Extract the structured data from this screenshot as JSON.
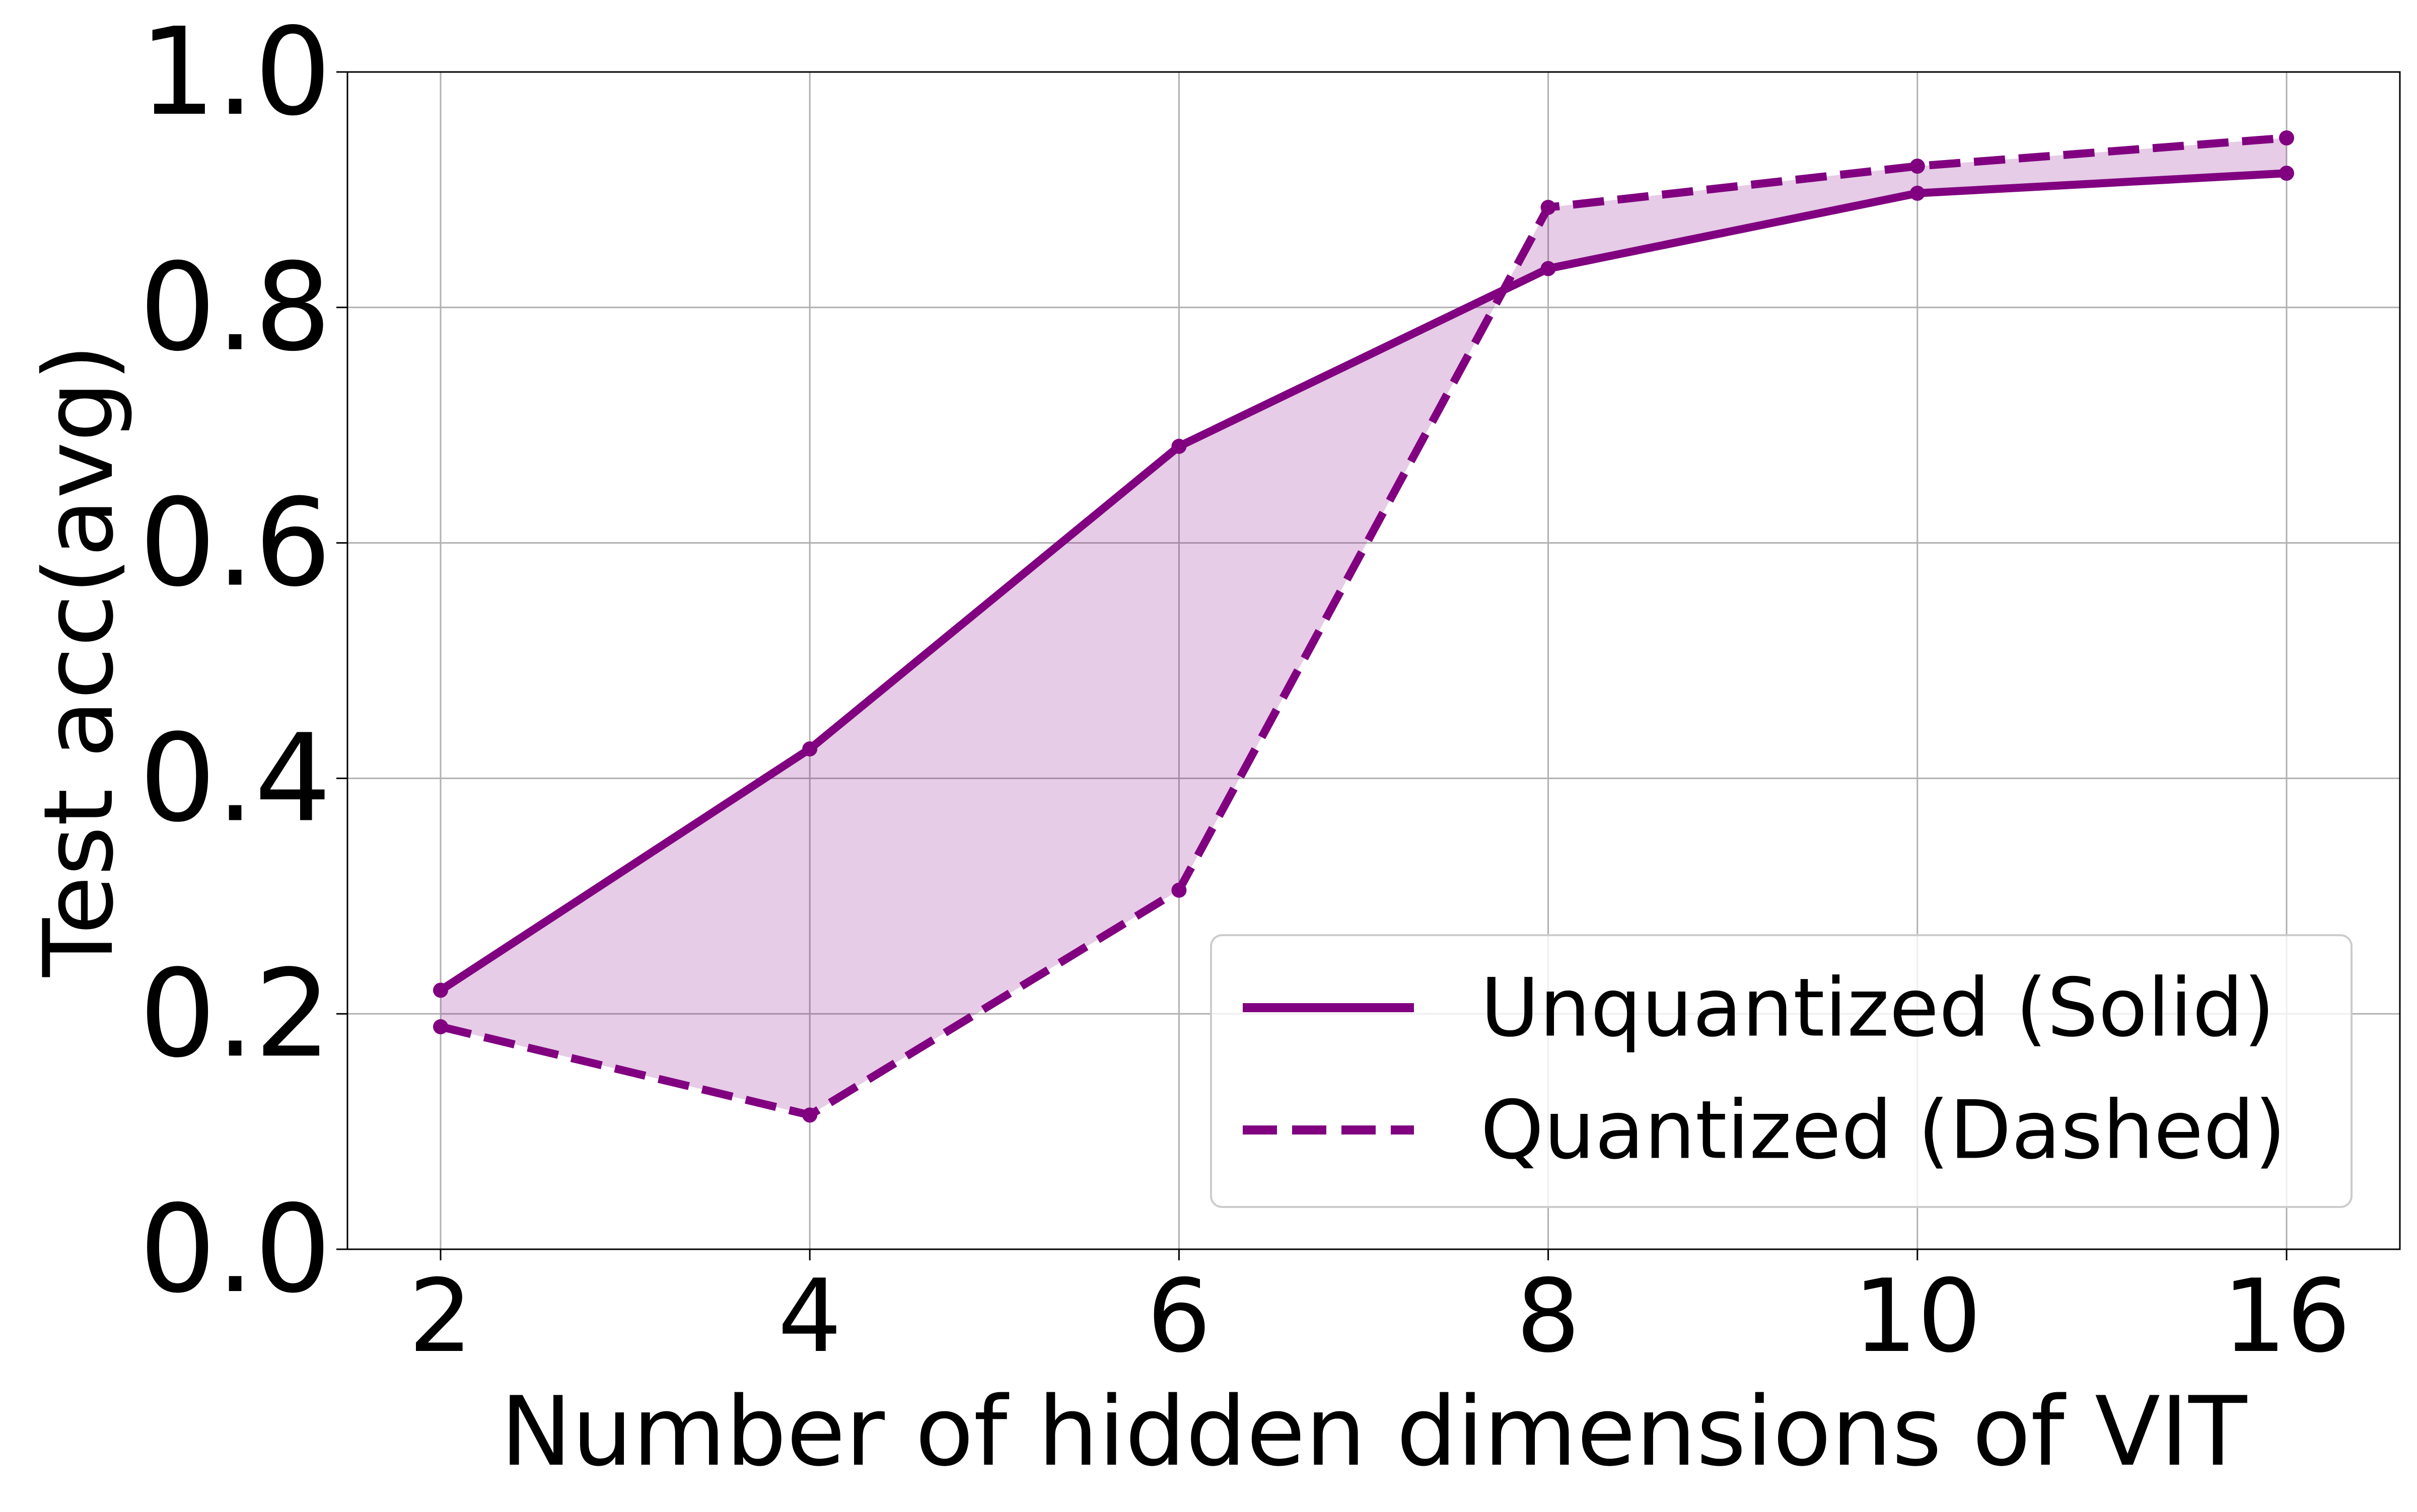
{
  "chart_data": {
    "type": "line",
    "title": "",
    "xlabel": "Number of hidden dimensions of VIT",
    "ylabel": "Test acc(avg)",
    "categories": [
      "2",
      "4",
      "6",
      "8",
      "10",
      "16"
    ],
    "ylim": [
      0.0,
      1.0
    ],
    "yticks": [
      "0.0",
      "0.2",
      "0.4",
      "0.6",
      "0.8",
      "1.0"
    ],
    "grid": true,
    "legend_position": "bottom-right",
    "fill_between_series": true,
    "series": [
      {
        "name": "Unquantized (Solid)",
        "style": "solid",
        "color": "#800080",
        "values": [
          0.22,
          0.425,
          0.682,
          0.833,
          0.897,
          0.914
        ]
      },
      {
        "name": "Quantized (Dashed)",
        "style": "dashed",
        "color": "#800080",
        "values": [
          0.189,
          0.114,
          0.305,
          0.885,
          0.92,
          0.944
        ]
      }
    ],
    "fill_color": "#800080"
  }
}
